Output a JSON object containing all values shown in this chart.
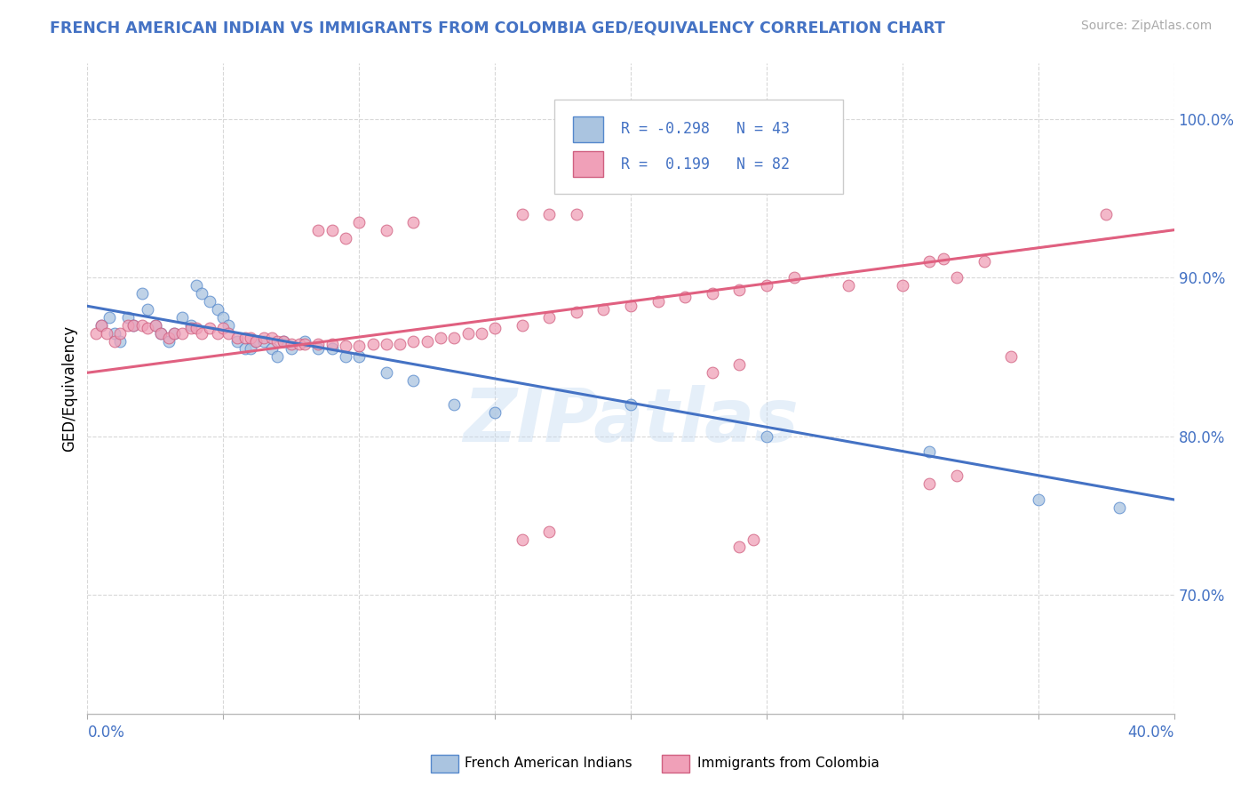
{
  "title": "FRENCH AMERICAN INDIAN VS IMMIGRANTS FROM COLOMBIA GED/EQUIVALENCY CORRELATION CHART",
  "source": "Source: ZipAtlas.com",
  "ylabel": "GED/Equivalency",
  "ytick_labels": [
    "70.0%",
    "80.0%",
    "90.0%",
    "100.0%"
  ],
  "ytick_values": [
    0.7,
    0.8,
    0.9,
    1.0
  ],
  "xlim": [
    0.0,
    0.4
  ],
  "ylim": [
    0.625,
    1.035
  ],
  "legend_blue_r": "-0.298",
  "legend_blue_n": "43",
  "legend_pink_r": "0.199",
  "legend_pink_n": "82",
  "legend_label_blue": "French American Indians",
  "legend_label_pink": "Immigrants from Colombia",
  "blue_scatter_color": "#aac4e0",
  "pink_scatter_color": "#f0a0b8",
  "blue_edge_color": "#5588cc",
  "pink_edge_color": "#d06080",
  "blue_line_color": "#4472c4",
  "pink_line_color": "#e06080",
  "title_color": "#4472c4",
  "source_color": "#aaaaaa",
  "watermark": "ZIPatlas",
  "blue_line_x0": 0.0,
  "blue_line_y0": 0.882,
  "blue_line_x1": 0.4,
  "blue_line_y1": 0.76,
  "pink_line_x0": 0.0,
  "pink_line_y0": 0.84,
  "pink_line_x1": 0.4,
  "pink_line_y1": 0.93,
  "blue_scatter_x": [
    0.005,
    0.008,
    0.01,
    0.012,
    0.015,
    0.017,
    0.02,
    0.022,
    0.025,
    0.027,
    0.03,
    0.032,
    0.035,
    0.038,
    0.04,
    0.042,
    0.045,
    0.048,
    0.05,
    0.052,
    0.055,
    0.058,
    0.06,
    0.062,
    0.065,
    0.068,
    0.07,
    0.072,
    0.075,
    0.08,
    0.085,
    0.09,
    0.095,
    0.1,
    0.11,
    0.12,
    0.135,
    0.15,
    0.2,
    0.25,
    0.31,
    0.35,
    0.38
  ],
  "blue_scatter_y": [
    0.87,
    0.875,
    0.865,
    0.86,
    0.875,
    0.87,
    0.89,
    0.88,
    0.87,
    0.865,
    0.86,
    0.865,
    0.875,
    0.87,
    0.895,
    0.89,
    0.885,
    0.88,
    0.875,
    0.87,
    0.86,
    0.855,
    0.855,
    0.86,
    0.86,
    0.855,
    0.85,
    0.86,
    0.855,
    0.86,
    0.855,
    0.855,
    0.85,
    0.85,
    0.84,
    0.835,
    0.82,
    0.815,
    0.82,
    0.8,
    0.79,
    0.76,
    0.755
  ],
  "pink_scatter_x": [
    0.003,
    0.005,
    0.007,
    0.01,
    0.012,
    0.015,
    0.017,
    0.02,
    0.022,
    0.025,
    0.027,
    0.03,
    0.032,
    0.035,
    0.038,
    0.04,
    0.042,
    0.045,
    0.048,
    0.05,
    0.052,
    0.055,
    0.058,
    0.06,
    0.062,
    0.065,
    0.068,
    0.07,
    0.072,
    0.075,
    0.078,
    0.08,
    0.085,
    0.09,
    0.095,
    0.1,
    0.105,
    0.11,
    0.115,
    0.12,
    0.125,
    0.13,
    0.135,
    0.14,
    0.145,
    0.15,
    0.16,
    0.17,
    0.18,
    0.19,
    0.2,
    0.21,
    0.22,
    0.23,
    0.24,
    0.25,
    0.26,
    0.31,
    0.315,
    0.34,
    0.375,
    0.085,
    0.09,
    0.095,
    0.1,
    0.11,
    0.12,
    0.16,
    0.17,
    0.18,
    0.23,
    0.24,
    0.28,
    0.3,
    0.32,
    0.33,
    0.16,
    0.17,
    0.24,
    0.245,
    0.31,
    0.32
  ],
  "pink_scatter_y": [
    0.865,
    0.87,
    0.865,
    0.86,
    0.865,
    0.87,
    0.87,
    0.87,
    0.868,
    0.87,
    0.865,
    0.862,
    0.865,
    0.865,
    0.868,
    0.868,
    0.865,
    0.868,
    0.865,
    0.868,
    0.865,
    0.862,
    0.862,
    0.862,
    0.86,
    0.862,
    0.862,
    0.86,
    0.86,
    0.858,
    0.858,
    0.858,
    0.858,
    0.858,
    0.857,
    0.857,
    0.858,
    0.858,
    0.858,
    0.86,
    0.86,
    0.862,
    0.862,
    0.865,
    0.865,
    0.868,
    0.87,
    0.875,
    0.878,
    0.88,
    0.882,
    0.885,
    0.888,
    0.89,
    0.892,
    0.895,
    0.9,
    0.91,
    0.912,
    0.85,
    0.94,
    0.93,
    0.93,
    0.925,
    0.935,
    0.93,
    0.935,
    0.94,
    0.94,
    0.94,
    0.84,
    0.845,
    0.895,
    0.895,
    0.9,
    0.91,
    0.735,
    0.74,
    0.73,
    0.735,
    0.77,
    0.775
  ]
}
